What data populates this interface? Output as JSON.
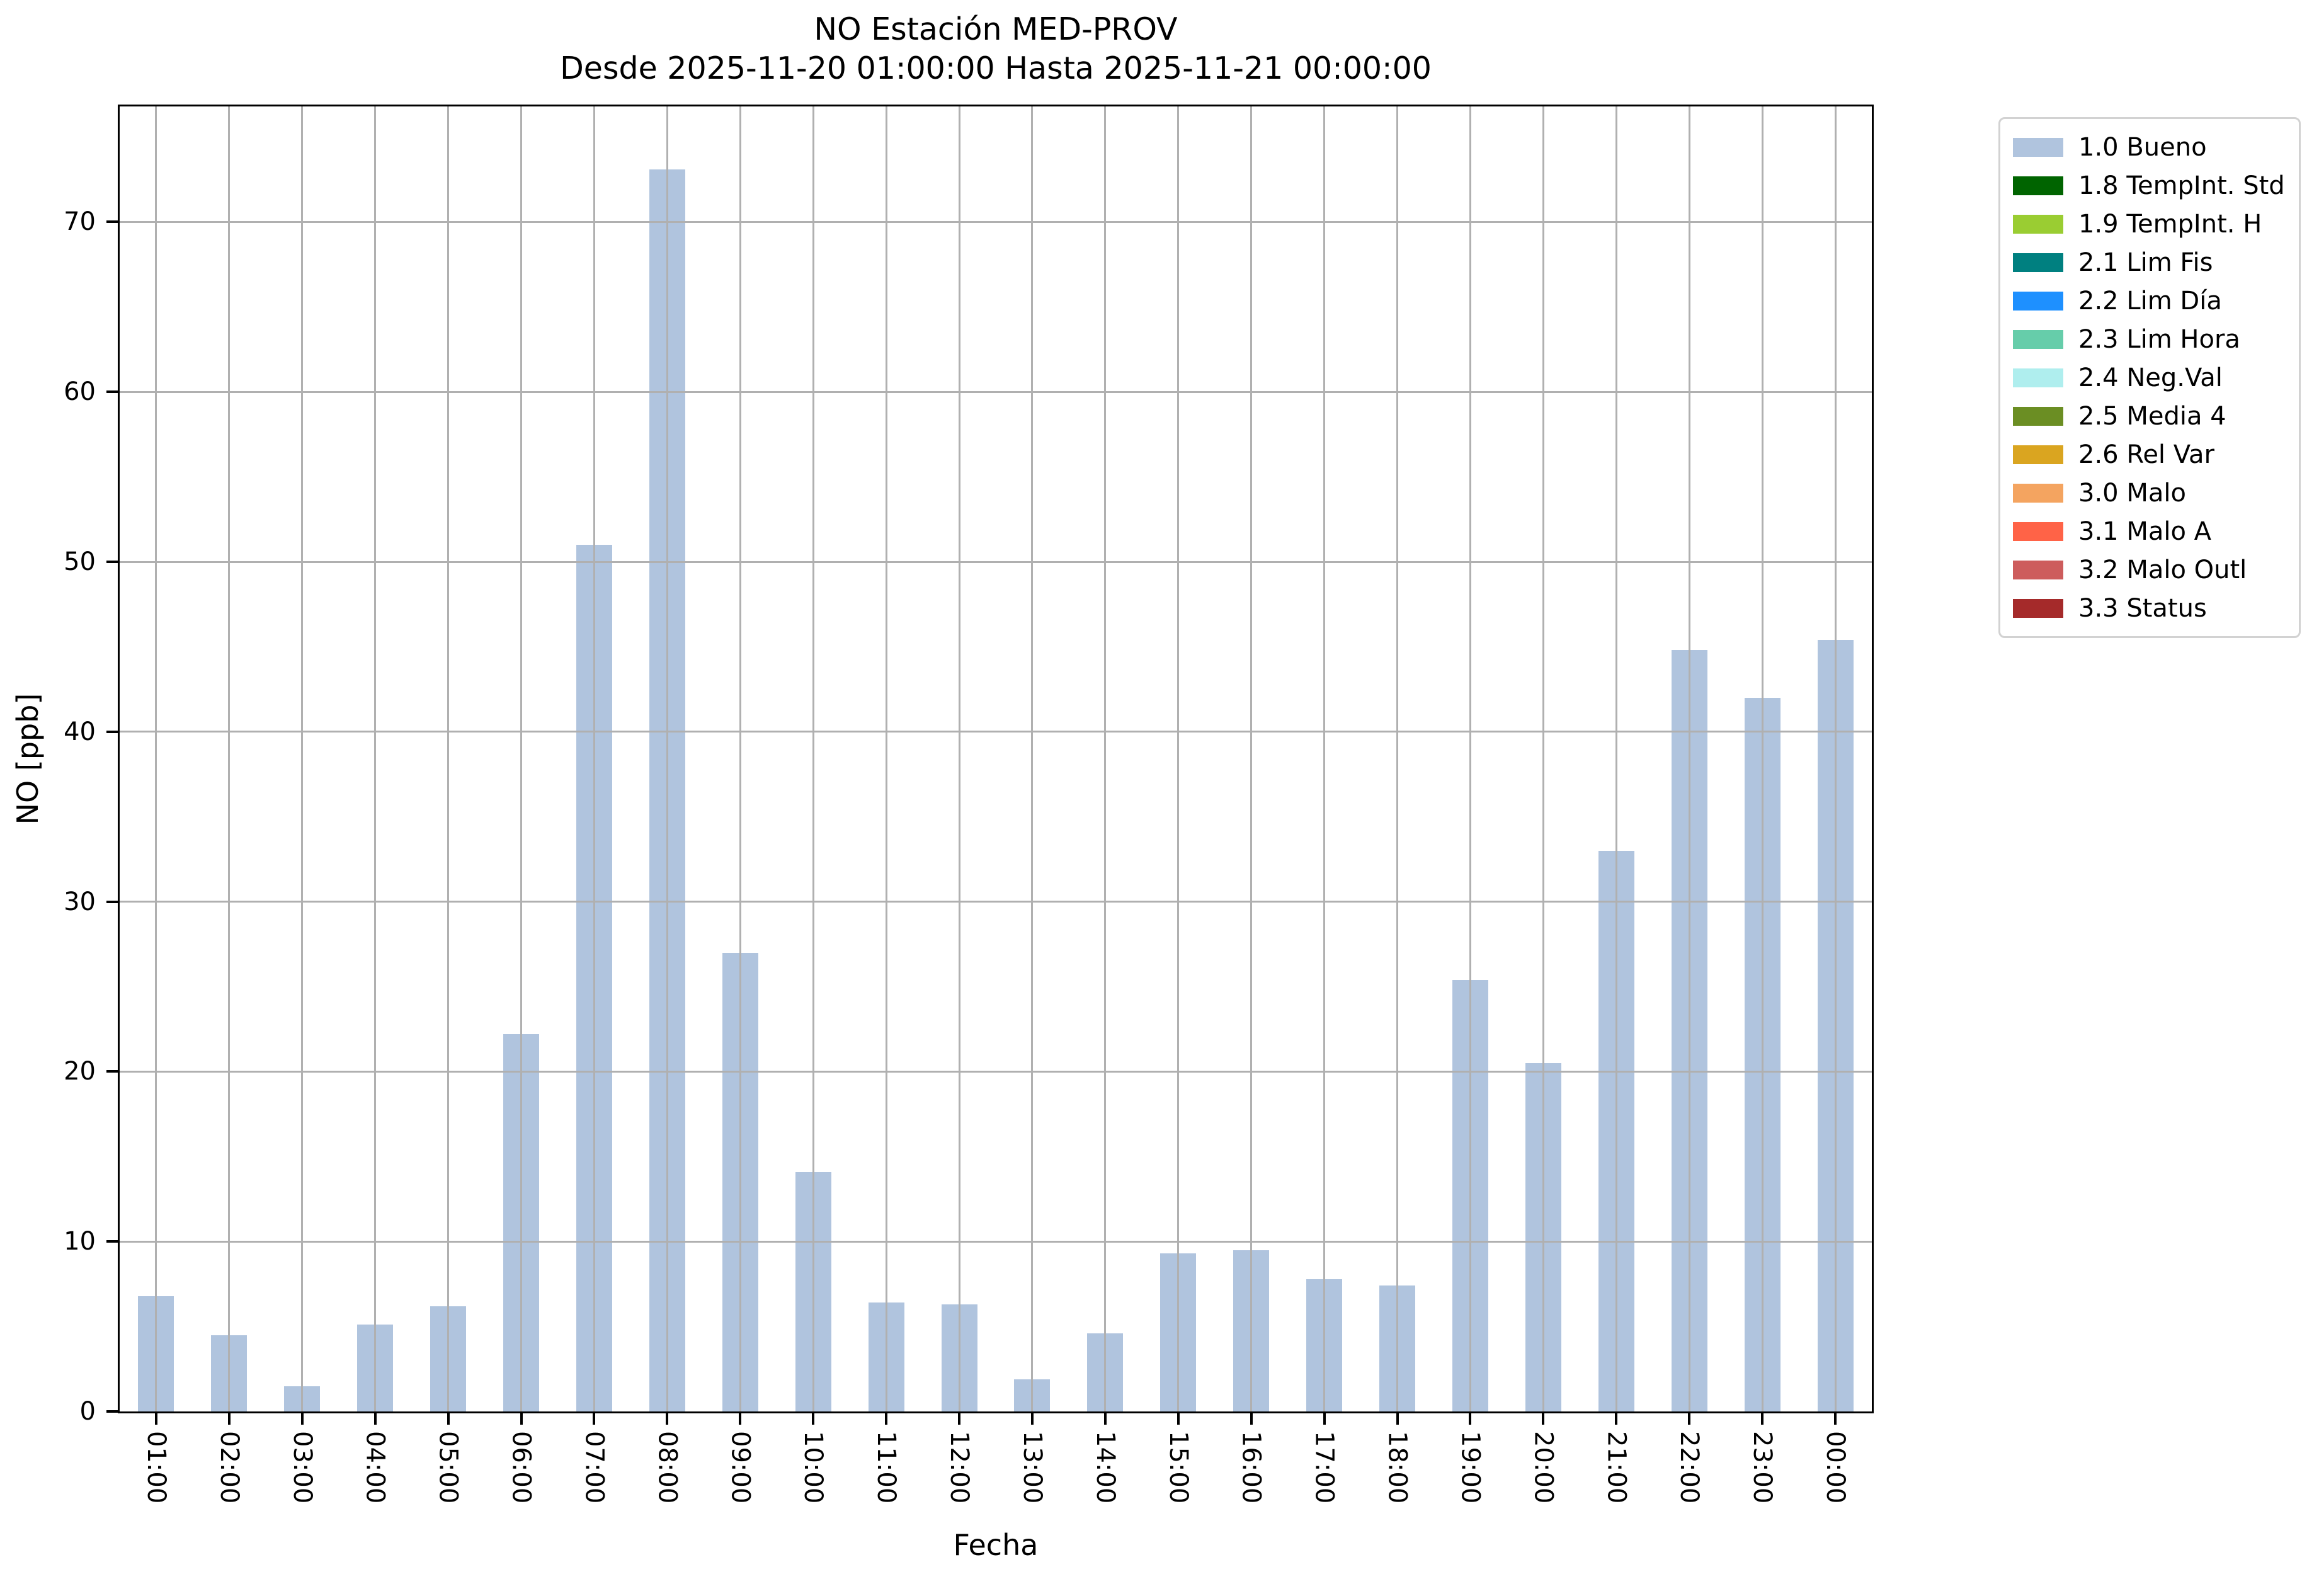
{
  "chart_data": {
    "type": "bar",
    "title": "NO Estación MED-PROV",
    "subtitle": "Desde 2025-11-20 01:00:00 Hasta 2025-11-21 00:00:00",
    "xlabel": "Fecha",
    "ylabel": "NO [ppb]",
    "categories": [
      "01:00",
      "02:00",
      "03:00",
      "04:00",
      "05:00",
      "06:00",
      "07:00",
      "08:00",
      "09:00",
      "10:00",
      "11:00",
      "12:00",
      "13:00",
      "14:00",
      "15:00",
      "16:00",
      "17:00",
      "18:00",
      "19:00",
      "20:00",
      "21:00",
      "22:00",
      "23:00",
      "00:00"
    ],
    "values": [
      6.8,
      4.5,
      1.5,
      5.1,
      6.2,
      22.2,
      51.0,
      73.1,
      27.0,
      14.1,
      6.4,
      6.3,
      1.9,
      4.6,
      9.3,
      9.5,
      7.8,
      7.4,
      25.4,
      20.5,
      33.0,
      44.8,
      42.0,
      45.4
    ],
    "series_name": "1.0 Bueno",
    "bar_color": "#b0c4de",
    "ylim": [
      0,
      76.8
    ],
    "yticks": [
      0,
      10,
      20,
      30,
      40,
      50,
      60,
      70
    ],
    "grid": true,
    "grid_color": "#b0b0b0",
    "legend_position": "outside upper right"
  },
  "legend": {
    "items": [
      {
        "label": "1.0 Bueno",
        "color": "#b0c4de"
      },
      {
        "label": "1.8 TempInt. Std",
        "color": "#006400"
      },
      {
        "label": "1.9 TempInt. H",
        "color": "#9acd32"
      },
      {
        "label": "2.1 Lim Fis",
        "color": "#008080"
      },
      {
        "label": "2.2 Lim Día",
        "color": "#1e90ff"
      },
      {
        "label": "2.3 Lim Hora",
        "color": "#66cdaa"
      },
      {
        "label": "2.4 Neg.Val",
        "color": "#afeeee"
      },
      {
        "label": "2.5 Media 4",
        "color": "#6b8e23"
      },
      {
        "label": "2.6 Rel Var",
        "color": "#daa520"
      },
      {
        "label": "3.0 Malo",
        "color": "#f4a460"
      },
      {
        "label": "3.1 Malo A",
        "color": "#ff6347"
      },
      {
        "label": "3.2 Malo Outl",
        "color": "#cd5c5c"
      },
      {
        "label": "3.3 Status",
        "color": "#a52a2a"
      }
    ]
  }
}
